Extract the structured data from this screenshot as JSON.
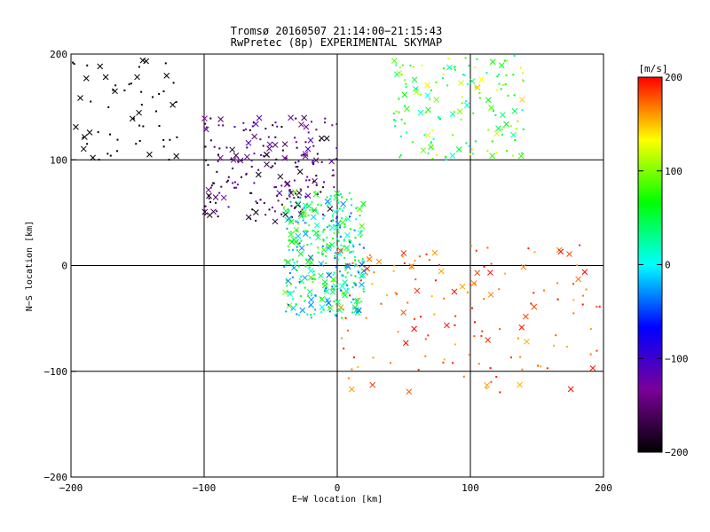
{
  "chart_data": {
    "type": "scatter",
    "title": "Tromsø 20160507 21:14:00−21:15:43",
    "subtitle": "RwPretec (8p) EXPERIMENTAL SKYMAP",
    "xlabel": "E−W location [km]",
    "ylabel": "N−S location [km]",
    "xlim": [
      -200,
      200
    ],
    "ylim": [
      -200,
      200
    ],
    "xticks": [
      -200,
      -100,
      0,
      100,
      200
    ],
    "yticks": [
      -200,
      -100,
      0,
      100,
      200
    ],
    "xtick_labels": [
      "−200",
      "−100",
      "0",
      "100",
      "200"
    ],
    "ytick_labels": [
      "−200",
      "−100",
      "0",
      "100",
      "200"
    ],
    "grid": true,
    "marker_styles": [
      "cross",
      "dot"
    ],
    "colorbar": {
      "label": "[m/s]",
      "range": [
        -200,
        200
      ],
      "ticks": [
        200,
        100,
        0,
        -100,
        -200
      ],
      "tick_labels": [
        "200",
        "100",
        "0",
        "−100",
        "−200"
      ],
      "colormap": [
        "#000000",
        "#7a0099",
        "#0000ff",
        "#00ffff",
        "#00ff00",
        "#ffff00",
        "#ff0000"
      ]
    },
    "clusters": [
      {
        "region": "north-west",
        "x_range": [
          -200,
          -120
        ],
        "y_range": [
          100,
          200
        ],
        "velocity_range": [
          -200,
          -200
        ]
      },
      {
        "region": "north-centre",
        "x_range": [
          -100,
          0
        ],
        "y_range": [
          40,
          140
        ],
        "velocity_range": [
          -200,
          -100
        ]
      },
      {
        "region": "north-east",
        "x_range": [
          40,
          140
        ],
        "y_range": [
          100,
          200
        ],
        "velocity_range": [
          0,
          150
        ]
      },
      {
        "region": "central",
        "x_range": [
          -40,
          20
        ],
        "y_range": [
          -50,
          70
        ],
        "velocity_range": [
          -50,
          100
        ]
      },
      {
        "region": "south-east",
        "x_range": [
          0,
          200
        ],
        "y_range": [
          -120,
          20
        ],
        "velocity_range": [
          150,
          200
        ]
      }
    ]
  }
}
